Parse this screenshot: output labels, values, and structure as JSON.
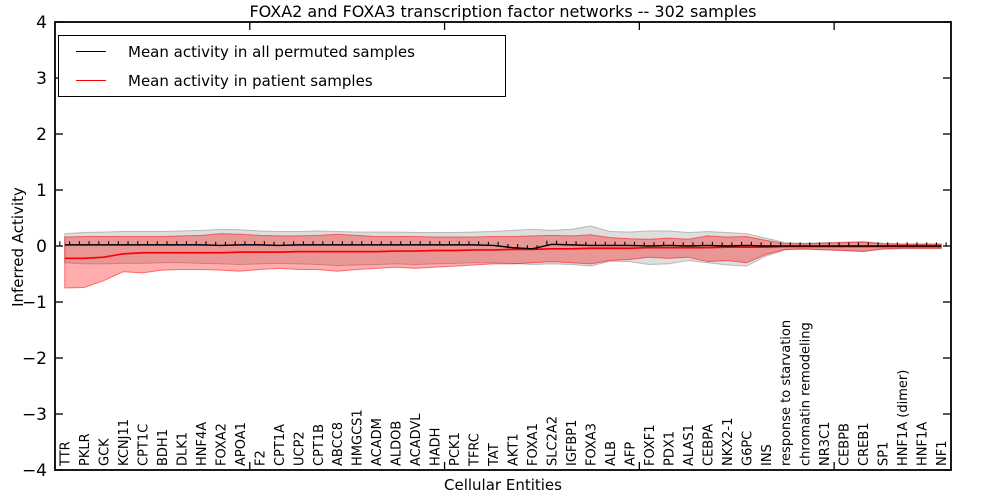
{
  "chart_data": {
    "type": "line",
    "title": "FOXA2 and FOXA3 transcription factor networks -- 302 samples",
    "xlabel": "Cellular Entities",
    "ylabel": "Inferred Activity",
    "ylim": [
      -4,
      4
    ],
    "ytick_labels": [
      "4",
      "3",
      "2",
      "1",
      "0",
      "−1",
      "−2",
      "−3",
      "−4"
    ],
    "grid": false,
    "legend_position": "upper left",
    "legend": [
      {
        "label": "Mean activity in all permuted samples",
        "color": "#000000"
      },
      {
        "label": "Mean activity in patient samples",
        "color": "#ff0000"
      }
    ],
    "categories": [
      "TTR",
      "PKLR",
      "GCK",
      "KCNJ11",
      "CPT1C",
      "BDH1",
      "DLK1",
      "HNF4A",
      "FOXA2",
      "APOA1",
      "F2",
      "CPT1A",
      "UCP2",
      "CPT1B",
      "ABCC8",
      "HMGCS1",
      "ACADM",
      "ALDOB",
      "ACADVL",
      "HADH",
      "PCK1",
      "TFRC",
      "TAT",
      "AKT1",
      "FOXA1",
      "SLC2A2",
      "IGFBP1",
      "FOXA3",
      "ALB",
      "AFP",
      "FOXF1",
      "PDX1",
      "ALAS1",
      "CEBPA",
      "NKX2-1",
      "G6PC",
      "INS",
      "response to starvation",
      "chromatin remodeling",
      "NR3C1",
      "CEBPB",
      "CREB1",
      "SP1",
      "HNF1A (dimer)",
      "HNF1A",
      "NF1"
    ],
    "series": [
      {
        "name": "Mean activity in all permuted samples",
        "color": "#000000",
        "values": [
          0.02,
          0.02,
          0.02,
          0.02,
          0.02,
          0.02,
          0.02,
          0.02,
          0.01,
          0.02,
          0.02,
          0.01,
          0.02,
          0.02,
          0.02,
          0.02,
          0.02,
          0.02,
          0.02,
          0.02,
          0.02,
          0.02,
          0.01,
          -0.03,
          -0.05,
          0.03,
          0.02,
          0.01,
          0.01,
          0.01,
          0.0,
          0.01,
          0.0,
          0.01,
          0.0,
          0.01,
          0.0,
          0.0,
          0.0,
          0.0,
          0.0,
          0.0,
          0.0,
          0.0,
          0.0,
          0.0
        ]
      },
      {
        "name": "Mean activity in patient samples",
        "color": "#ff0000",
        "values": [
          -0.22,
          -0.22,
          -0.2,
          -0.14,
          -0.12,
          -0.12,
          -0.12,
          -0.12,
          -0.12,
          -0.11,
          -0.11,
          -0.11,
          -0.1,
          -0.1,
          -0.1,
          -0.1,
          -0.1,
          -0.09,
          -0.09,
          -0.08,
          -0.08,
          -0.07,
          -0.07,
          -0.06,
          -0.06,
          -0.05,
          -0.05,
          -0.04,
          -0.04,
          -0.04,
          -0.03,
          -0.03,
          -0.03,
          -0.03,
          -0.02,
          -0.02,
          -0.02,
          -0.01,
          -0.01,
          -0.01,
          -0.01,
          -0.01,
          -0.01,
          -0.01,
          -0.01,
          -0.01
        ]
      }
    ],
    "bands": [
      {
        "name": "permuted samples range",
        "fill": "#000000",
        "fill_opacity": 0.13,
        "edge_opacity": 0.22,
        "upper": [
          0.22,
          0.24,
          0.25,
          0.26,
          0.26,
          0.26,
          0.27,
          0.28,
          0.3,
          0.29,
          0.27,
          0.26,
          0.26,
          0.27,
          0.26,
          0.25,
          0.25,
          0.25,
          0.24,
          0.24,
          0.24,
          0.25,
          0.26,
          0.28,
          0.3,
          0.28,
          0.3,
          0.36,
          0.26,
          0.25,
          0.27,
          0.27,
          0.24,
          0.26,
          0.24,
          0.22,
          0.14,
          0.06,
          0.05,
          0.06,
          0.07,
          0.08,
          0.05,
          0.04,
          0.04,
          0.04
        ],
        "lower": [
          -0.3,
          -0.32,
          -0.32,
          -0.31,
          -0.31,
          -0.3,
          -0.3,
          -0.31,
          -0.32,
          -0.33,
          -0.32,
          -0.31,
          -0.32,
          -0.33,
          -0.35,
          -0.34,
          -0.33,
          -0.32,
          -0.33,
          -0.32,
          -0.31,
          -0.3,
          -0.3,
          -0.31,
          -0.33,
          -0.32,
          -0.33,
          -0.36,
          -0.27,
          -0.28,
          -0.33,
          -0.32,
          -0.26,
          -0.3,
          -0.34,
          -0.36,
          -0.18,
          -0.07,
          -0.06,
          -0.07,
          -0.08,
          -0.09,
          -0.06,
          -0.05,
          -0.05,
          -0.05
        ]
      },
      {
        "name": "patient samples range",
        "fill": "#ff0000",
        "fill_opacity": 0.32,
        "edge_opacity": 0.5,
        "upper": [
          0.16,
          0.17,
          0.17,
          0.17,
          0.17,
          0.17,
          0.18,
          0.19,
          0.22,
          0.21,
          0.19,
          0.18,
          0.18,
          0.19,
          0.21,
          0.19,
          0.17,
          0.17,
          0.17,
          0.16,
          0.16,
          0.16,
          0.17,
          0.17,
          0.18,
          0.19,
          0.18,
          0.2,
          0.15,
          0.13,
          0.12,
          0.14,
          0.12,
          0.18,
          0.16,
          0.17,
          0.1,
          0.04,
          0.04,
          0.05,
          0.06,
          0.07,
          0.04,
          0.03,
          0.03,
          0.03
        ],
        "lower": [
          -0.75,
          -0.74,
          -0.62,
          -0.46,
          -0.48,
          -0.43,
          -0.42,
          -0.42,
          -0.43,
          -0.45,
          -0.42,
          -0.4,
          -0.42,
          -0.42,
          -0.45,
          -0.42,
          -0.4,
          -0.38,
          -0.4,
          -0.38,
          -0.36,
          -0.34,
          -0.32,
          -0.32,
          -0.3,
          -0.28,
          -0.3,
          -0.32,
          -0.26,
          -0.24,
          -0.2,
          -0.22,
          -0.2,
          -0.28,
          -0.26,
          -0.3,
          -0.15,
          -0.06,
          -0.05,
          -0.07,
          -0.08,
          -0.1,
          -0.05,
          -0.04,
          -0.04,
          -0.04
        ]
      }
    ]
  }
}
